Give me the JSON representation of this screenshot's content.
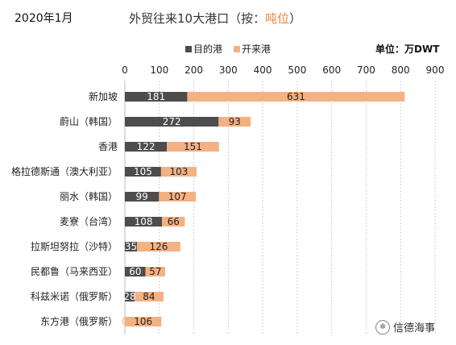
{
  "header": {
    "date": "2020年1月",
    "title_main": "外贸往来10大港口（按：",
    "title_highlight": "吨位",
    "title_end": "）"
  },
  "legend": {
    "destination": "目的港",
    "origin": "开来港"
  },
  "unit": "单位：万DWT",
  "watermark": "信德海事",
  "colors": {
    "destination": "#4d4d4d",
    "origin": "#f4b183",
    "highlight": "#e8873a"
  },
  "chart_data": {
    "type": "bar",
    "orientation": "horizontal",
    "stacked": true,
    "categories": [
      "新加坡",
      "蔚山（韩国）",
      "香港",
      "格拉德斯通（澳大利亚）",
      "丽水（韩国）",
      "麦寮（台湾）",
      "拉斯坦努拉（沙特）",
      "民都鲁（马来西亚）",
      "科兹米诺（俄罗斯）",
      "东方港（俄罗斯）"
    ],
    "series": [
      {
        "name": "目的港",
        "values": [
          181,
          272,
          122,
          105,
          99,
          108,
          35,
          60,
          28,
          0
        ]
      },
      {
        "name": "开来港",
        "values": [
          631,
          93,
          151,
          103,
          107,
          66,
          126,
          57,
          84,
          106
        ]
      }
    ],
    "xlim": [
      0,
      900
    ],
    "xticks": [
      0,
      100,
      200,
      300,
      400,
      500,
      600,
      700,
      800,
      900
    ],
    "grid": true
  }
}
